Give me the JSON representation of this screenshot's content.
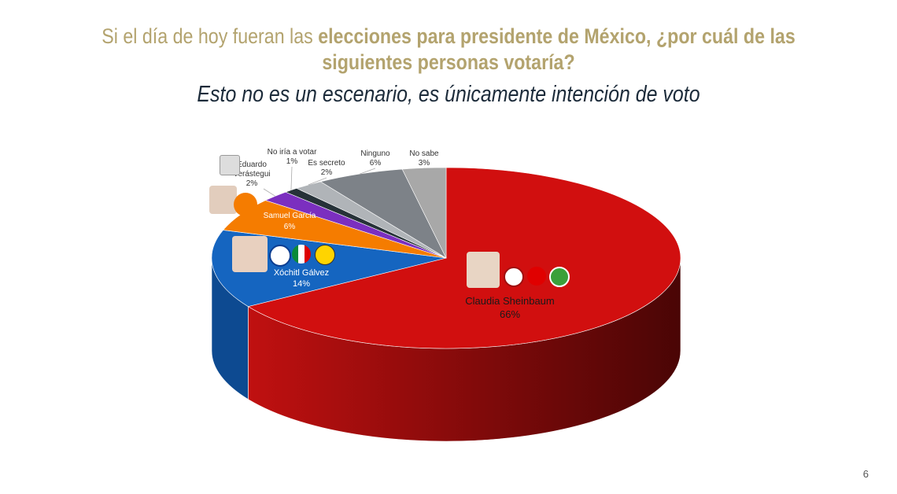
{
  "title_regular": "Si el día de hoy fueran las ",
  "title_bold": "elecciones para presidente de México, ¿por cuál de las siguientes personas votaría?",
  "subtitle": "Esto no es un escenario, es únicamente intención de voto",
  "page_number": "6",
  "chart_data": {
    "type": "pie",
    "style": "3d",
    "start": "top",
    "direction": "clockwise",
    "slices": [
      {
        "name": "Claudia Sheinbaum",
        "value": 66,
        "label": "66%",
        "color": "#d10f0f",
        "side": "#8a0a0a"
      },
      {
        "name": "Xóchitl Gálvez",
        "value": 14,
        "label": "14%",
        "color": "#1565c0",
        "side": "#0d4a91"
      },
      {
        "name": "Samuel García",
        "value": 6,
        "label": "6%",
        "color": "#f57c00",
        "side": "#b85c00"
      },
      {
        "name": "Eduardo Verástegui",
        "value": 2,
        "label": "2%",
        "color": "#7b2fbf",
        "side": "#5a2090"
      },
      {
        "name": "No iría a votar",
        "value": 1,
        "label": "1%",
        "color": "#263238",
        "side": "#11181c"
      },
      {
        "name": "Es secreto",
        "value": 2,
        "label": "2%",
        "color": "#b0b4b8",
        "side": "#888"
      },
      {
        "name": "Ninguno",
        "value": 6,
        "label": "6%",
        "color": "#7d8288",
        "side": "#5a5e63"
      },
      {
        "name": "No sabe",
        "value": 3,
        "label": "3%",
        "color": "#a8a8a8",
        "side": "#808080"
      }
    ]
  }
}
